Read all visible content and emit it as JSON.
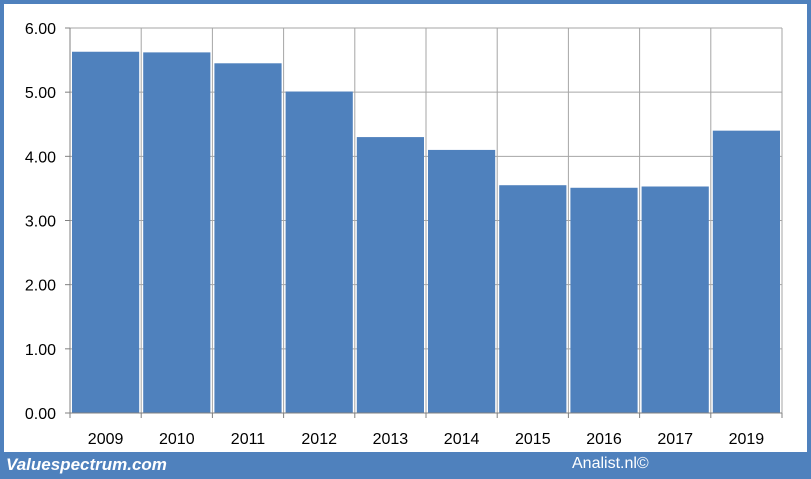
{
  "chart_data": {
    "type": "bar",
    "title": "",
    "xlabel": "",
    "ylabel": "",
    "categories": [
      "2009",
      "2010",
      "2011",
      "2012",
      "2013",
      "2014",
      "2015",
      "2016",
      "2017",
      "2019"
    ],
    "values": [
      5.63,
      5.62,
      5.45,
      5.01,
      4.3,
      4.1,
      3.55,
      3.51,
      3.53,
      4.4
    ],
    "ylim": [
      0,
      6
    ],
    "yticks": [
      "0.00",
      "1.00",
      "2.00",
      "3.00",
      "4.00",
      "5.00",
      "6.00"
    ],
    "grid": true,
    "legend": "none"
  },
  "colors": {
    "bar": "#4f81bd",
    "frame": "#4f81bd",
    "grid": "#a6a6a6"
  },
  "footer": {
    "brand": "Valuespectrum.com",
    "credit": "Analist.nl©"
  }
}
